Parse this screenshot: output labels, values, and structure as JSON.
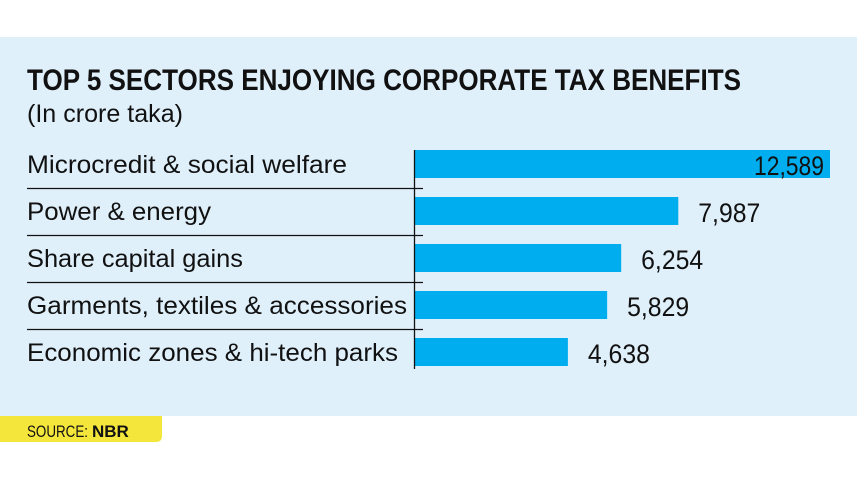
{
  "chart_data": {
    "type": "bar",
    "orientation": "horizontal",
    "title": "TOP 5 SECTORS ENJOYING CORPORATE TAX BENEFITS",
    "subtitle": "(In crore taka)",
    "categories": [
      "Microcredit & social welfare",
      "Power & energy",
      "Share capital gains",
      "Garments, textiles & accessories",
      "Economic zones & hi-tech parks"
    ],
    "values": [
      12589,
      7987,
      6254,
      5829,
      4638
    ],
    "value_labels": [
      "12,589",
      "7,987",
      "6,254",
      "5,829",
      "4,638"
    ],
    "xlim": [
      0,
      12589
    ],
    "grid": false,
    "source_label": "SOURCE:",
    "source": "NBR"
  },
  "colors": {
    "background": "#dff0fb",
    "bar": "#00aeef",
    "source_badge": "#f5e63c",
    "text": "#111111"
  }
}
